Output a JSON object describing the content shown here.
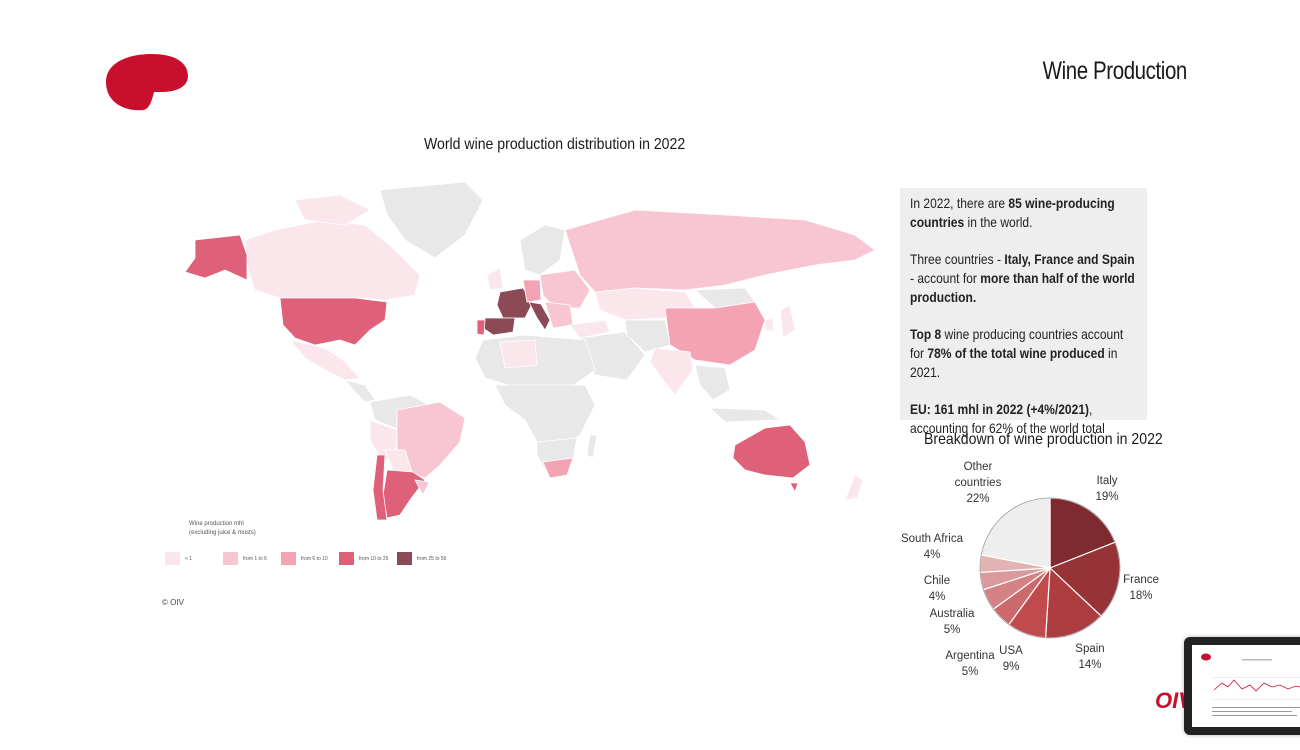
{
  "page": {
    "title": "Wine Production",
    "copyright": "© OIV",
    "brand_text": "OIV"
  },
  "map": {
    "title": "World wine production distribution in 2022",
    "legend_title_line1": "Wine production mhl",
    "legend_title_line2": "(excluding juice & musts)",
    "legend": [
      {
        "label": "< 1",
        "color": "#fbe6ec"
      },
      {
        "label": "from 1 to 6",
        "color": "#f8c6d2"
      },
      {
        "label": "from 6 to 10",
        "color": "#f3a3b4"
      },
      {
        "label": "from 10 to 25",
        "color": "#df6079"
      },
      {
        "label": "from 25 to 50",
        "color": "#8b4a55"
      }
    ],
    "colors": {
      "none": "#e8e8e8",
      "lt1": "#fbe6ec",
      "t1_6": "#f8c6d2",
      "t6_10": "#f3a3b4",
      "t10_25": "#df6079",
      "t25_50": "#8b4a55"
    }
  },
  "info": {
    "p1_a": "In 2022, there are ",
    "p1_b": "85 wine-producing countries",
    "p1_c": " in the world.",
    "p2_a": "Three countries - ",
    "p2_b": "Italy, France and Spain",
    "p2_c": " - account for ",
    "p2_d": "more than half of the world production.",
    "p3_a": "Top 8",
    "p3_b": " wine producing countries account for ",
    "p3_c": "78% of the total wine produced",
    "p3_d": " in 2021.",
    "p4_a": "EU: 161 mhl in 2022 (+4%/2021)",
    "p4_b": ", accounting for 62% of the world total"
  },
  "chart_data": {
    "type": "pie",
    "title": "Breakdown of wine production in 2022",
    "categories": [
      "Italy",
      "France",
      "Spain",
      "USA",
      "Argentina",
      "Australia",
      "Chile",
      "South Africa",
      "Other countries"
    ],
    "values": [
      19,
      18,
      14,
      9,
      5,
      5,
      4,
      4,
      22
    ],
    "labels": [
      "19%",
      "18%",
      "14%",
      "9%",
      "5%",
      "5%",
      "4%",
      "4%",
      "22%"
    ],
    "colors": [
      "#7f2a2f",
      "#963337",
      "#ad3d40",
      "#c04a4c",
      "#cc6a6b",
      "#d48284",
      "#da9a9b",
      "#e3b3b3",
      "#eeeeee"
    ]
  }
}
